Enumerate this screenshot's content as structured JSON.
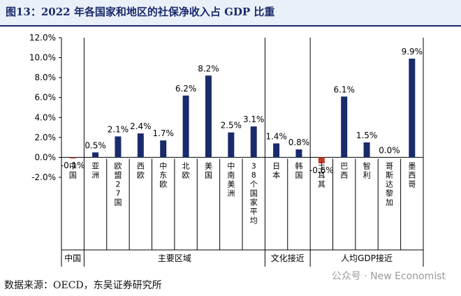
{
  "title": "图13：2022 年各国家和地区的社保净收入占 GDP 比重",
  "source": "数据来源：OECD，东吴证券研究所",
  "watermark": "公众号 · New Economist",
  "colors": {
    "bar": "#1a2b6b",
    "negative_bar": "#c0392b",
    "title_bg": "#eaf0f8"
  },
  "chart_data": {
    "type": "bar",
    "title": "2022 年各国家和地区的社保净收入占 GDP 比重",
    "ylim": [
      -2.0,
      12.0
    ],
    "y_ticks": [
      "12.0%",
      "10.0%",
      "8.0%",
      "6.0%",
      "4.0%",
      "2.0%",
      "0.0%",
      "-2.0%"
    ],
    "y_tick_values": [
      12,
      10,
      8,
      6,
      4,
      2,
      0,
      -2
    ],
    "categories": [
      "中国",
      "亚洲",
      "欧盟27国",
      "西欧",
      "中东欧",
      "北欧",
      "美国",
      "中南美洲",
      "38个国家平均",
      "日本",
      "韩国",
      "土耳其",
      "巴西",
      "智利",
      "哥斯达黎加",
      "墨西哥"
    ],
    "values": [
      -0.1,
      0.5,
      2.1,
      2.4,
      1.7,
      6.2,
      8.2,
      2.5,
      3.1,
      1.4,
      0.8,
      -0.6,
      6.1,
      1.5,
      0.0,
      9.9
    ],
    "value_labels": [
      "-0.1%",
      "0.5%",
      "2.1%",
      "2.4%",
      "1.7%",
      "6.2%",
      "8.2%",
      "2.5%",
      "3.1%",
      "1.4%",
      "0.8%",
      "-0.6%",
      "6.1%",
      "1.5%",
      "0.0%",
      "9.9%"
    ],
    "groups": [
      {
        "label": "中国",
        "start": 0,
        "end": 0
      },
      {
        "label": "主要区域",
        "start": 1,
        "end": 8
      },
      {
        "label": "文化接近",
        "start": 9,
        "end": 10
      },
      {
        "label": "人均GDP接近",
        "start": 11,
        "end": 15
      }
    ],
    "grid": false
  }
}
